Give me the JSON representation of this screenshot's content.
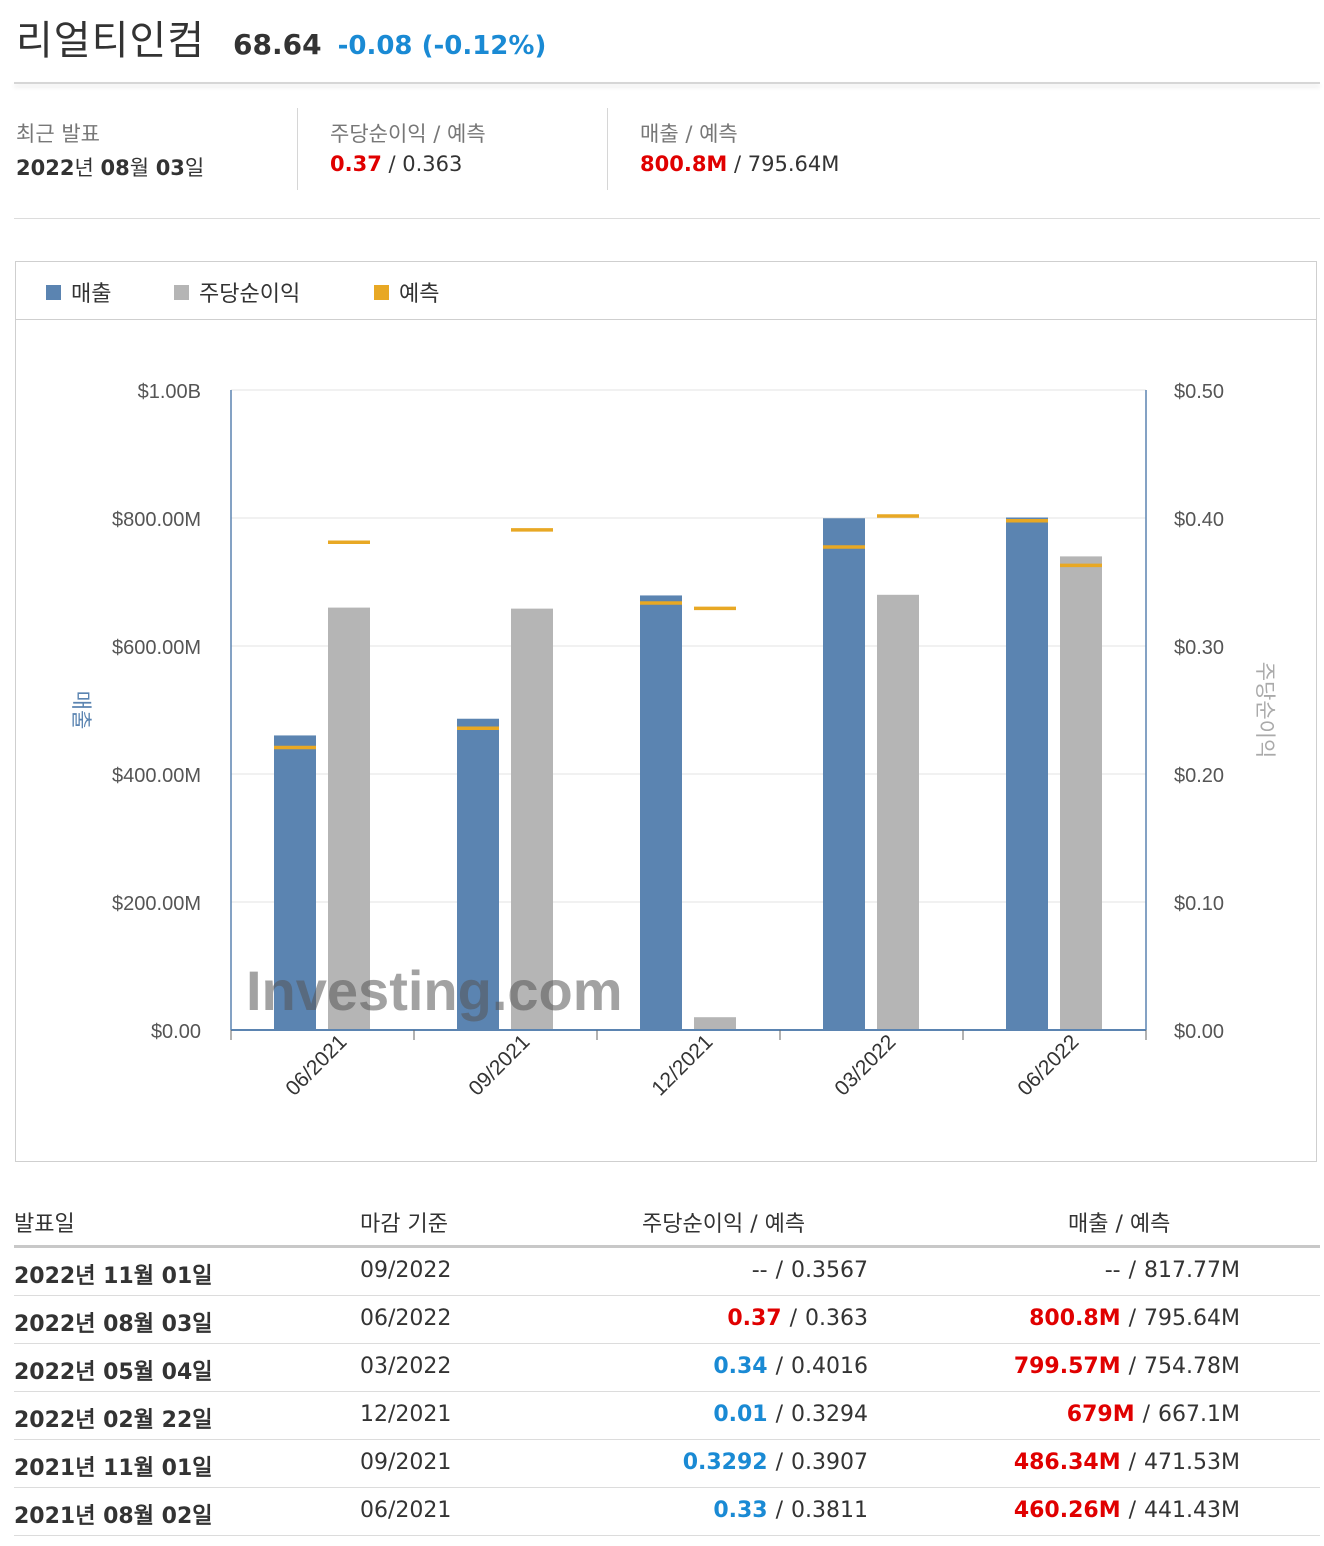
{
  "header": {
    "company": "리얼티인컴",
    "price": "68.64",
    "change": "-0.08 (-0.12%)"
  },
  "summary": {
    "latest_label": "최근 발표",
    "latest_value_year": "2022",
    "latest_value_y_suffix": "년 ",
    "latest_value_month": "08",
    "latest_value_m_suffix": "월 ",
    "latest_value_day": "03",
    "latest_value_d_suffix": "일",
    "eps_label": "주당순이익 / 예측",
    "eps_actual": "0.37",
    "eps_forecast": " / 0.363",
    "rev_label": "매출 / 예측",
    "rev_actual": "800.8M",
    "rev_forecast": " / 795.64M"
  },
  "legend": {
    "revenue": "매출",
    "eps": "주당순이익",
    "forecast": "예측"
  },
  "colors": {
    "revenue": "#5b84b1",
    "eps": "#b5b5b5",
    "forecast": "#e8a824",
    "positive": "#e00000",
    "negative": "#1a8ad4"
  },
  "chart_data": {
    "type": "bar",
    "categories": [
      "06/2021",
      "09/2021",
      "12/2021",
      "03/2022",
      "06/2022"
    ],
    "series": [
      {
        "name": "매출",
        "axis": "left",
        "values": [
          460.26,
          486.34,
          679,
          799.57,
          800.8
        ],
        "forecast": [
          441.43,
          471.53,
          667.1,
          754.78,
          795.64
        ]
      },
      {
        "name": "주당순이익",
        "axis": "right",
        "values": [
          0.33,
          0.3292,
          0.01,
          0.34,
          0.37
        ],
        "forecast": [
          0.3811,
          0.3907,
          0.3294,
          0.4016,
          0.363
        ]
      }
    ],
    "left_axis": {
      "label": "매출",
      "ticks": [
        "$0.00",
        "$200.00M",
        "$400.00M",
        "$600.00M",
        "$800.00M",
        "$1.00B"
      ],
      "ylim": [
        0,
        1000
      ]
    },
    "right_axis": {
      "label": "주당순이익",
      "ticks": [
        "$0.00",
        "$0.10",
        "$0.20",
        "$0.30",
        "$0.40",
        "$0.50"
      ],
      "ylim": [
        0,
        0.5
      ]
    },
    "watermark": "Investing.com",
    "grid": true,
    "legend_position": "top-left"
  },
  "table": {
    "headers": {
      "date": "발표일",
      "period": "마감 기준",
      "eps": "주당순이익  /  예측",
      "rev": "매출  /  예측"
    },
    "rows": [
      {
        "date": "2022년 11월 01일",
        "period": "09/2022",
        "eps_actual": "--",
        "eps_forecast": "0.3567",
        "rev_actual": "--",
        "rev_forecast": "817.77M",
        "eps_color": "plain",
        "rev_color": "plain"
      },
      {
        "date": "2022년 08월 03일",
        "period": "06/2022",
        "eps_actual": "0.37",
        "eps_forecast": "0.363",
        "rev_actual": "800.8M",
        "rev_forecast": "795.64M",
        "eps_color": "red",
        "rev_color": "red"
      },
      {
        "date": "2022년 05월 04일",
        "period": "03/2022",
        "eps_actual": "0.34",
        "eps_forecast": "0.4016",
        "rev_actual": "799.57M",
        "rev_forecast": "754.78M",
        "eps_color": "blue",
        "rev_color": "red"
      },
      {
        "date": "2022년 02월 22일",
        "period": "12/2021",
        "eps_actual": "0.01",
        "eps_forecast": "0.3294",
        "rev_actual": "679M",
        "rev_forecast": "667.1M",
        "eps_color": "blue",
        "rev_color": "red"
      },
      {
        "date": "2021년 11월 01일",
        "period": "09/2021",
        "eps_actual": "0.3292",
        "eps_forecast": "0.3907",
        "rev_actual": "486.34M",
        "rev_forecast": "471.53M",
        "eps_color": "blue",
        "rev_color": "red"
      },
      {
        "date": "2021년 08월 02일",
        "period": "06/2021",
        "eps_actual": "0.33",
        "eps_forecast": "0.3811",
        "rev_actual": "460.26M",
        "rev_forecast": "441.43M",
        "eps_color": "blue",
        "rev_color": "red"
      }
    ]
  }
}
